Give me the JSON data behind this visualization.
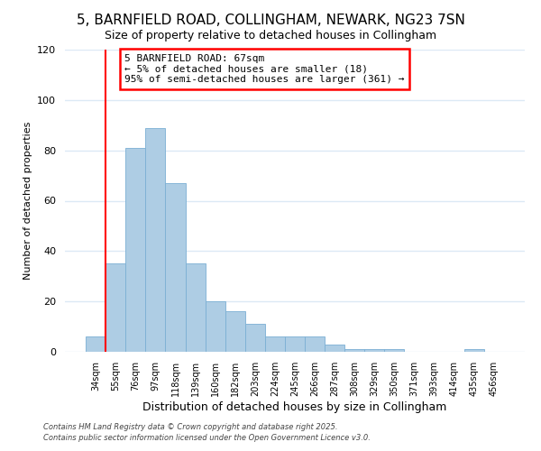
{
  "title": "5, BARNFIELD ROAD, COLLINGHAM, NEWARK, NG23 7SN",
  "subtitle": "Size of property relative to detached houses in Collingham",
  "xlabel": "Distribution of detached houses by size in Collingham",
  "ylabel": "Number of detached properties",
  "bar_labels": [
    "34sqm",
    "55sqm",
    "76sqm",
    "97sqm",
    "118sqm",
    "139sqm",
    "160sqm",
    "182sqm",
    "203sqm",
    "224sqm",
    "245sqm",
    "266sqm",
    "287sqm",
    "308sqm",
    "329sqm",
    "350sqm",
    "371sqm",
    "393sqm",
    "414sqm",
    "435sqm",
    "456sqm"
  ],
  "bar_values": [
    6,
    35,
    81,
    89,
    67,
    35,
    20,
    16,
    11,
    6,
    6,
    6,
    3,
    1,
    1,
    1,
    0,
    0,
    0,
    1,
    0
  ],
  "bar_color": "#aecde4",
  "bar_edge_color": "#7bafd4",
  "vline_color": "red",
  "vline_pos": 0.5,
  "ylim": [
    0,
    120
  ],
  "yticks": [
    0,
    20,
    40,
    60,
    80,
    100,
    120
  ],
  "annotation_title": "5 BARNFIELD ROAD: 67sqm",
  "annotation_line1": "← 5% of detached houses are smaller (18)",
  "annotation_line2": "95% of semi-detached houses are larger (361) →",
  "footer1": "Contains HM Land Registry data © Crown copyright and database right 2025.",
  "footer2": "Contains public sector information licensed under the Open Government Licence v3.0.",
  "background_color": "#ffffff",
  "grid_color": "#dce9f5",
  "title_fontsize": 11,
  "subtitle_fontsize": 9,
  "xlabel_fontsize": 9,
  "ylabel_fontsize": 8,
  "tick_fontsize": 7,
  "annot_fontsize": 8,
  "footer_fontsize": 6
}
